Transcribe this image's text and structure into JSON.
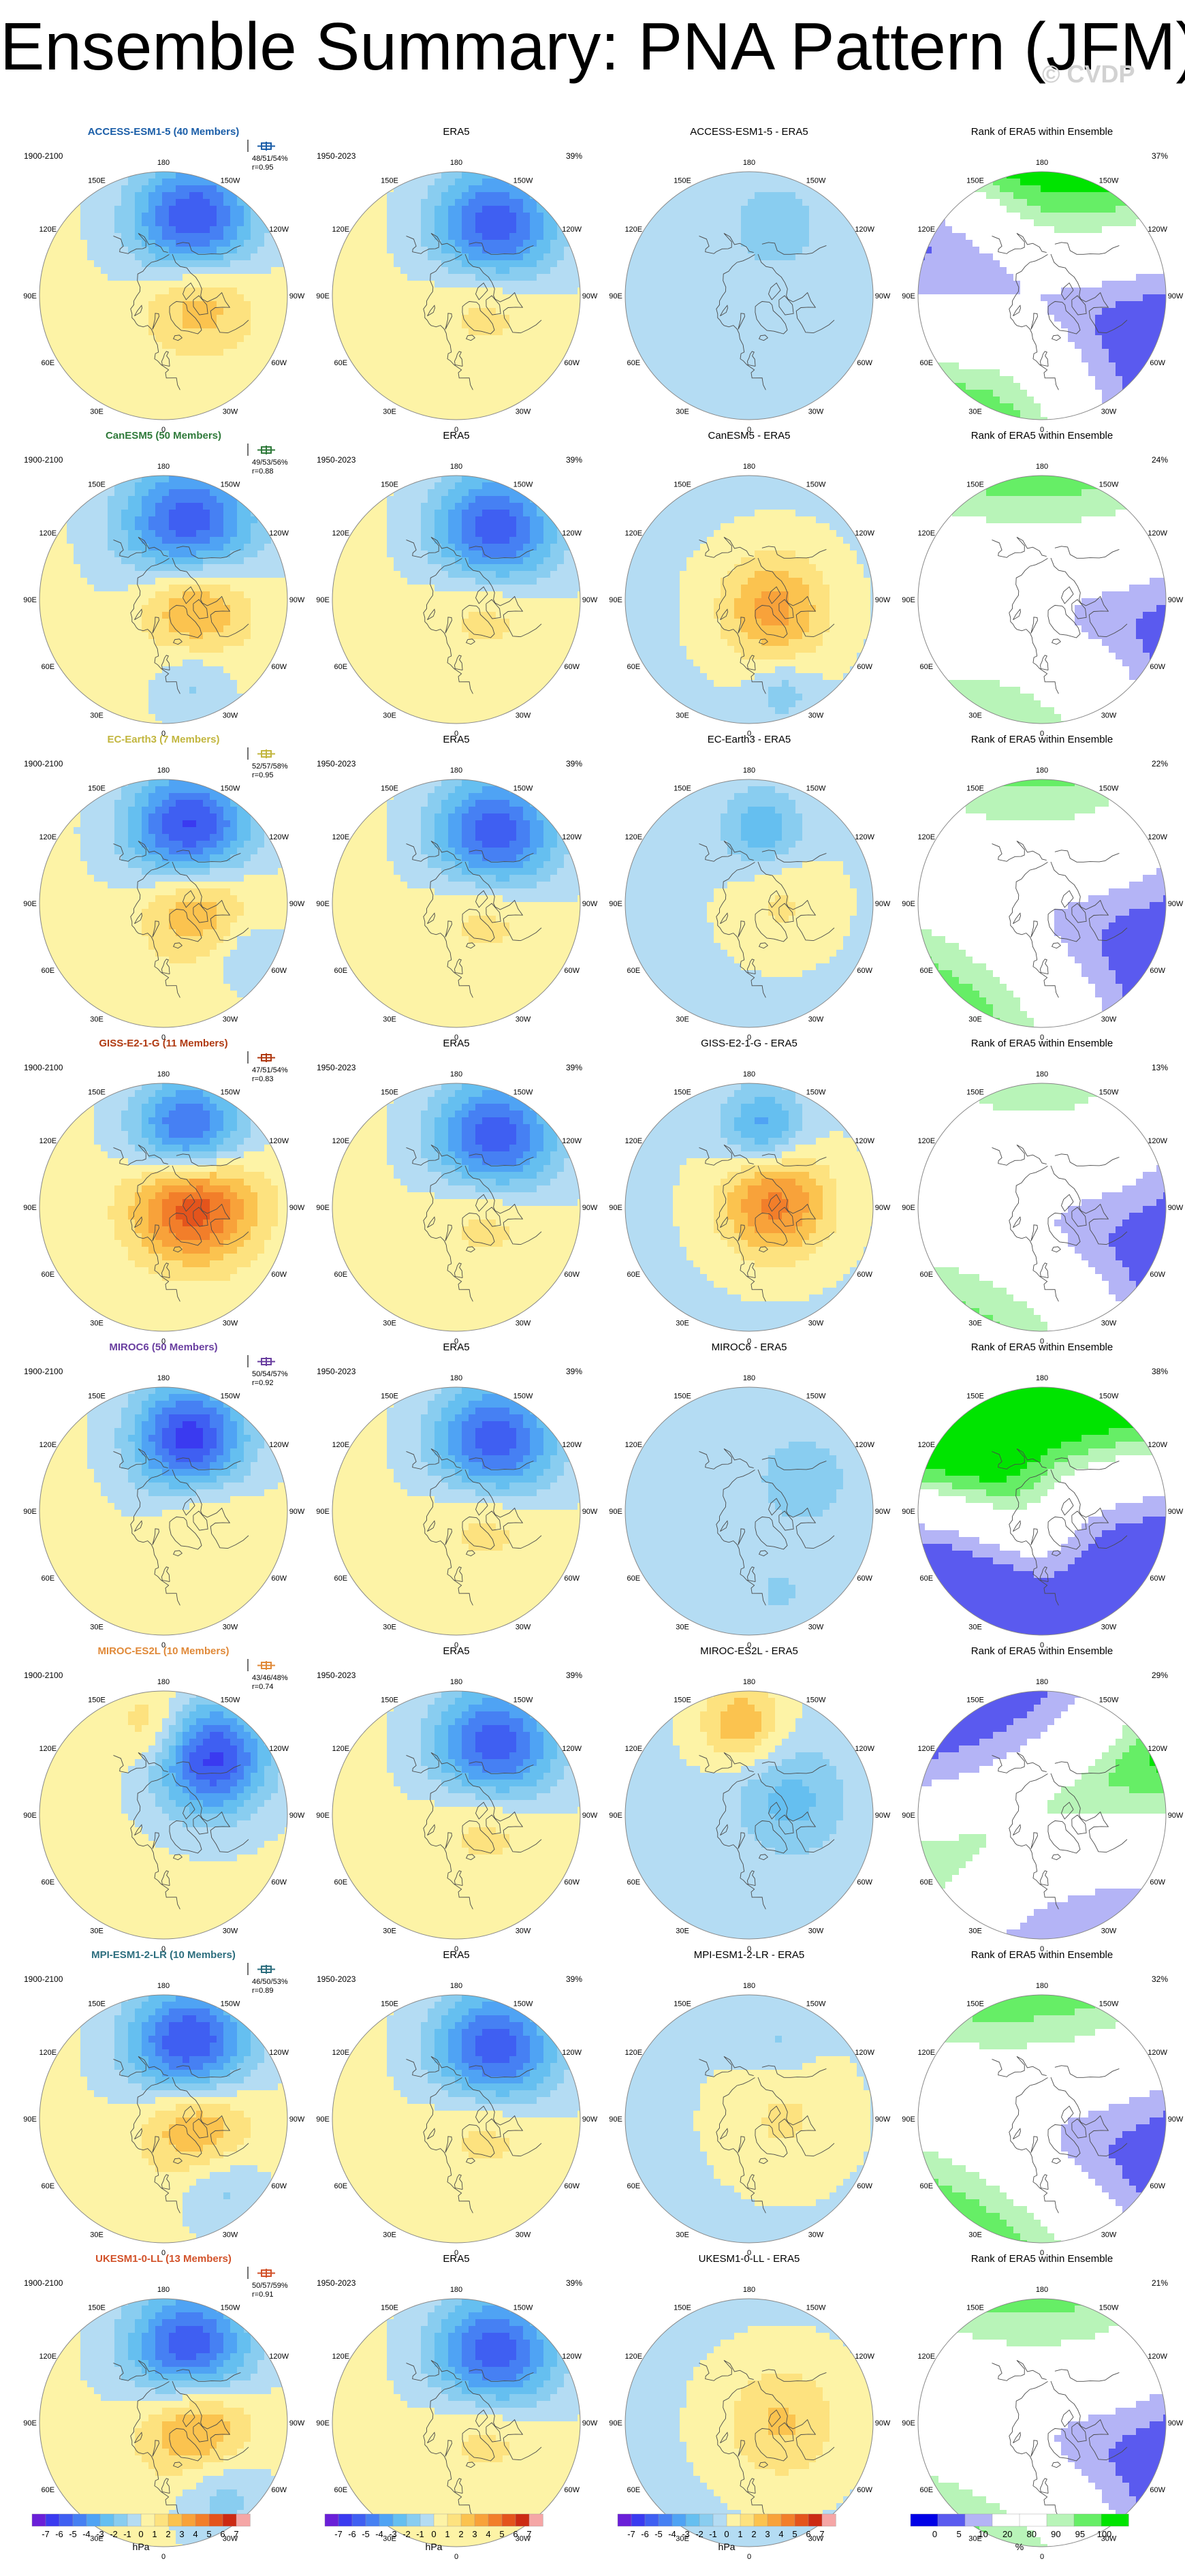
{
  "title": "Ensemble Summary: PNA Pattern (JFM)",
  "watermark": "© CVDP",
  "map_labels": {
    "lon180": "180",
    "lon150w": "150W",
    "lon150e": "150E",
    "lon120w": "120W",
    "lon120e": "120E",
    "lon90w": "90W",
    "lon90e": "90E",
    "lon60w": "60W",
    "lon60e": "60E",
    "lon30w": "30W",
    "lon30e": "30E",
    "lon0": "0"
  },
  "rows": [
    {
      "model": "ACCESS-ESM1-5 (40 Members)",
      "model_color": "#1b5ea8",
      "period": "1900-2100",
      "stats_line1": "48/51/54%",
      "stats_line2": "r=0.95",
      "era5_title": "ERA5",
      "era5_period": "1950-2023",
      "era5_pct": "39%",
      "diff_title": "ACCESS-ESM1-5 - ERA5",
      "rank_title": "Rank of ERA5 within Ensemble",
      "rank_pct": "37%",
      "model_fields": [
        {
          "lat": 45,
          "lon": -158,
          "amp": -6.5,
          "w": 24
        },
        {
          "lat": 70,
          "lon": -90,
          "amp": 3.0,
          "w": 22
        }
      ],
      "diff_fields": [
        {
          "lat": 48,
          "lon": -160,
          "amp": -1.6,
          "w": 18
        }
      ],
      "rank_fields": [
        {
          "lat": 38,
          "lon": -165,
          "v": 98,
          "w": 24
        },
        {
          "lat": 65,
          "lon": -60,
          "v": 5,
          "w": 26
        },
        {
          "lat": 62,
          "lon": 90,
          "v": 5,
          "w": 22
        },
        {
          "lat": 40,
          "lon": 30,
          "v": 98,
          "w": 24
        }
      ]
    },
    {
      "model": "CanESM5 (50 Members)",
      "model_color": "#2f7a3a",
      "period": "1900-2100",
      "stats_line1": "49/53/56%",
      "stats_line2": "r=0.88",
      "era5_title": "ERA5",
      "era5_period": "1950-2023",
      "era5_pct": "39%",
      "diff_title": "CanESM5 - ERA5",
      "rank_title": "Rank of ERA5 within Ensemble",
      "rank_pct": "24%",
      "model_fields": [
        {
          "lat": 47,
          "lon": -160,
          "amp": -6.5,
          "w": 26
        },
        {
          "lat": 72,
          "lon": -95,
          "amp": 4.2,
          "w": 22
        },
        {
          "lat": 40,
          "lon": -20,
          "amp": -1.5,
          "w": 15
        }
      ],
      "diff_fields": [
        {
          "lat": 75,
          "lon": -70,
          "amp": 3.5,
          "w": 22
        },
        {
          "lat": 35,
          "lon": -20,
          "amp": -1.5,
          "w": 12
        }
      ],
      "rank_fields": [
        {
          "lat": 40,
          "lon": -170,
          "v": 98,
          "w": 26
        },
        {
          "lat": 75,
          "lon": -60,
          "v": 5,
          "w": 30
        },
        {
          "lat": 38,
          "lon": 10,
          "v": 98,
          "w": 24
        }
      ]
    },
    {
      "model": "EC-Earth3 (7 Members)",
      "model_color": "#c2b63e",
      "period": "1900-2100",
      "stats_line1": "52/57/58%",
      "stats_line2": "r=0.95",
      "era5_title": "ERA5",
      "era5_period": "1950-2023",
      "era5_pct": "39%",
      "diff_title": "EC-Earth3 - ERA5",
      "rank_title": "Rank of ERA5 within Ensemble",
      "rank_pct": "22%",
      "model_fields": [
        {
          "lat": 47,
          "lon": -160,
          "amp": -7.0,
          "w": 24
        },
        {
          "lat": 72,
          "lon": -100,
          "amp": 3.8,
          "w": 22
        },
        {
          "lat": 35,
          "lon": -60,
          "amp": -1.4,
          "w": 14
        }
      ],
      "diff_fields": [
        {
          "lat": 48,
          "lon": -170,
          "amp": -2.6,
          "w": 16
        },
        {
          "lat": 72,
          "lon": -90,
          "amp": 1.3,
          "w": 20
        }
      ],
      "rank_fields": [
        {
          "lat": 40,
          "lon": -170,
          "v": 98,
          "w": 26
        },
        {
          "lat": 72,
          "lon": -70,
          "v": 5,
          "w": 32
        },
        {
          "lat": 30,
          "lon": 30,
          "v": 98,
          "w": 26
        }
      ]
    },
    {
      "model": "GISS-E2-1-G (11 Members)",
      "model_color": "#b03a12",
      "period": "1900-2100",
      "stats_line1": "47/51/54%",
      "stats_line2": "r=0.83",
      "era5_title": "ERA5",
      "era5_period": "1950-2023",
      "era5_pct": "39%",
      "diff_title": "GISS-E2-1-G - ERA5",
      "rank_title": "Rank of ERA5 within Ensemble",
      "rank_pct": "13%",
      "model_fields": [
        {
          "lat": 48,
          "lon": -160,
          "amp": -7.0,
          "w": 22
        },
        {
          "lat": 72,
          "lon": -110,
          "amp": 6.8,
          "w": 24
        }
      ],
      "diff_fields": [
        {
          "lat": 45,
          "lon": -170,
          "amp": -3.5,
          "w": 16
        },
        {
          "lat": 75,
          "lon": -100,
          "amp": 4.5,
          "w": 22
        }
      ],
      "rank_fields": [
        {
          "lat": 40,
          "lon": -170,
          "v": 98,
          "w": 26
        },
        {
          "lat": 72,
          "lon": -80,
          "v": 5,
          "w": 34
        },
        {
          "lat": 30,
          "lon": 20,
          "v": 98,
          "w": 26
        }
      ]
    },
    {
      "model": "MIROC6 (50 Members)",
      "model_color": "#6a3fa0",
      "period": "1900-2100",
      "stats_line1": "50/54/57%",
      "stats_line2": "r=0.92",
      "era5_title": "ERA5",
      "era5_period": "1950-2023",
      "era5_pct": "39%",
      "diff_title": "MIROC6 - ERA5",
      "rank_title": "Rank of ERA5 within Ensemble",
      "rank_pct": "38%",
      "model_fields": [
        {
          "lat": 47,
          "lon": -160,
          "amp": -6.8,
          "w": 22
        },
        {
          "lat": 68,
          "lon": -100,
          "amp": 1.5,
          "w": 18
        }
      ],
      "diff_fields": [
        {
          "lat": 55,
          "lon": -120,
          "amp": -1.2,
          "w": 26
        },
        {
          "lat": 40,
          "lon": -20,
          "amp": -0.9,
          "w": 16
        }
      ],
      "rank_fields": [
        {
          "lat": 45,
          "lon": -160,
          "v": 98,
          "w": 22
        },
        {
          "lat": 60,
          "lon": -70,
          "v": 5,
          "w": 20
        },
        {
          "lat": 45,
          "lon": 40,
          "v": 5,
          "w": 18
        },
        {
          "lat": 70,
          "lon": 150,
          "v": 98,
          "w": 20
        }
      ]
    },
    {
      "model": "MIROC-ES2L (10 Members)",
      "model_color": "#e08a3a",
      "period": "1900-2100",
      "stats_line1": "43/46/48%",
      "stats_line2": "r=0.74",
      "era5_title": "ERA5",
      "era5_period": "1950-2023",
      "era5_pct": "39%",
      "diff_title": "MIROC-ES2L - ERA5",
      "rank_title": "Rank of ERA5 within Ensemble",
      "rank_pct": "29%",
      "model_fields": [
        {
          "lat": 48,
          "lon": -140,
          "amp": -6.5,
          "w": 22
        },
        {
          "lat": 40,
          "lon": 175,
          "amp": 2.0,
          "w": 16
        }
      ],
      "diff_fields": [
        {
          "lat": 38,
          "lon": 175,
          "amp": 3.0,
          "w": 16
        },
        {
          "lat": 65,
          "lon": -110,
          "amp": -2.2,
          "w": 22
        }
      ],
      "rank_fields": [
        {
          "lat": 38,
          "lon": 170,
          "v": 5,
          "w": 22
        },
        {
          "lat": 65,
          "lon": -100,
          "v": 98,
          "w": 26
        },
        {
          "lat": 42,
          "lon": -40,
          "v": 5,
          "w": 22
        }
      ]
    },
    {
      "model": "MPI-ESM1-2-LR (10 Members)",
      "model_color": "#2d6e7e",
      "period": "1900-2100",
      "stats_line1": "46/50/53%",
      "stats_line2": "r=0.89",
      "era5_title": "ERA5",
      "era5_period": "1950-2023",
      "era5_pct": "39%",
      "diff_title": "MPI-ESM1-2-LR - ERA5",
      "rank_title": "Rank of ERA5 within Ensemble",
      "rank_pct": "32%",
      "model_fields": [
        {
          "lat": 47,
          "lon": -160,
          "amp": -6.8,
          "w": 24
        },
        {
          "lat": 72,
          "lon": -95,
          "amp": 3.8,
          "w": 22
        },
        {
          "lat": 38,
          "lon": -40,
          "amp": -1.6,
          "w": 16
        }
      ],
      "diff_fields": [
        {
          "lat": 70,
          "lon": -90,
          "amp": 1.3,
          "w": 24
        },
        {
          "lat": 45,
          "lon": -160,
          "amp": -1.1,
          "w": 14
        }
      ],
      "rank_fields": [
        {
          "lat": 40,
          "lon": -170,
          "v": 98,
          "w": 26
        },
        {
          "lat": 70,
          "lon": -70,
          "v": 5,
          "w": 30
        },
        {
          "lat": 30,
          "lon": 20,
          "v": 98,
          "w": 26
        }
      ]
    },
    {
      "model": "UKESM1-0-LL (13 Members)",
      "model_color": "#d2522a",
      "period": "1900-2100",
      "stats_line1": "50/57/59%",
      "stats_line2": "r=0.91",
      "era5_title": "ERA5",
      "era5_period": "1950-2023",
      "era5_pct": "39%",
      "diff_title": "UKESM1-0-LL - ERA5",
      "rank_title": "Rank of ERA5 within Ensemble",
      "rank_pct": "21%",
      "model_fields": [
        {
          "lat": 47,
          "lon": -160,
          "amp": -6.5,
          "w": 24
        },
        {
          "lat": 72,
          "lon": -95,
          "amp": 4.2,
          "w": 22
        },
        {
          "lat": 38,
          "lon": -40,
          "amp": -1.8,
          "w": 18
        }
      ],
      "diff_fields": [
        {
          "lat": 72,
          "lon": -90,
          "amp": 2.3,
          "w": 24
        }
      ],
      "rank_fields": [
        {
          "lat": 40,
          "lon": -170,
          "v": 98,
          "w": 26
        },
        {
          "lat": 72,
          "lon": -60,
          "v": 5,
          "w": 32
        },
        {
          "lat": 30,
          "lon": 20,
          "v": 98,
          "w": 26
        }
      ]
    }
  ],
  "era5_fields": [
    {
      "lat": 47,
      "lon": -150,
      "amp": -6.5,
      "w": 24
    },
    {
      "lat": 72,
      "lon": -100,
      "amp": 2.2,
      "w": 22
    }
  ],
  "colorbar_hpa": {
    "ticks": [
      "-7",
      "-6",
      "-5",
      "-4",
      "-3",
      "-2",
      "-1",
      "0",
      "1",
      "2",
      "3",
      "4",
      "5",
      "6",
      "7"
    ],
    "unit": "hPa",
    "colors": [
      "#6a1fd8",
      "#3a3af0",
      "#3f5ff2",
      "#4680f3",
      "#4fa3f4",
      "#65bff0",
      "#89cdf0",
      "#b4dcf3",
      "#fdf3a6",
      "#fde27f",
      "#fbc34f",
      "#f8a23a",
      "#f27e2a",
      "#e4541c",
      "#cc2a13",
      "#f5a6a6"
    ]
  },
  "colorbar_rank": {
    "ticks": [
      "0",
      "5",
      "10",
      "20",
      "80",
      "90",
      "95",
      "100"
    ],
    "unit": "%",
    "colors": [
      "#0000e6",
      "#5a5aef",
      "#b4b4f6",
      "#ffffff",
      "#ffffff",
      "#b8f4b8",
      "#66ee66",
      "#00e400"
    ]
  },
  "colors": {
    "title": "#000000",
    "coast": "#4a4a4a",
    "border": "#888888"
  }
}
